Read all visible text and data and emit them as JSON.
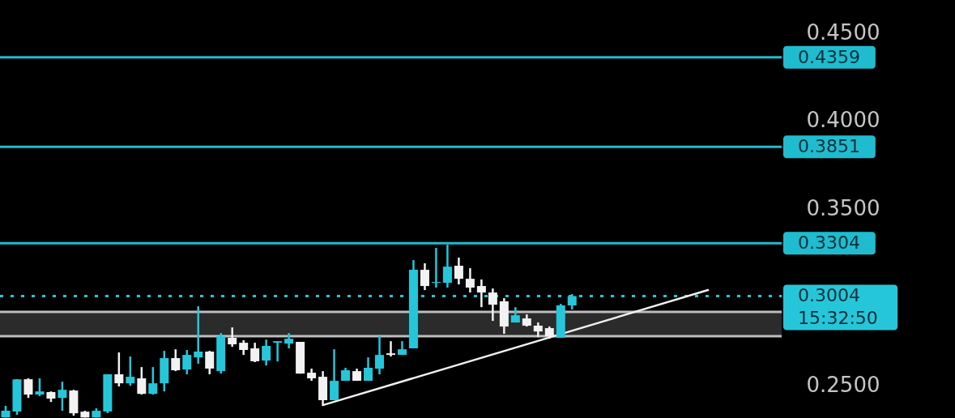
{
  "chart_data": {
    "type": "candlestick",
    "categories": [
      null,
      null,
      null,
      null,
      null,
      null,
      null,
      null,
      null,
      null,
      null,
      null,
      null,
      null,
      null,
      null,
      null,
      null,
      null,
      null,
      null,
      null,
      null,
      null,
      null,
      null,
      null,
      null,
      null,
      null,
      null,
      null,
      null,
      null,
      null,
      null,
      null,
      null,
      null,
      null,
      null,
      null,
      null,
      null,
      null,
      null,
      null,
      null,
      null,
      null,
      null,
      null,
      null,
      null,
      null,
      null,
      null,
      null,
      null,
      null,
      null,
      null,
      null,
      null,
      null,
      null,
      null,
      null,
      null
    ],
    "ohlc": [
      [
        0.2315,
        0.2381,
        0.2315,
        0.2353
      ],
      [
        0.2349,
        0.2532,
        0.233,
        0.2532
      ],
      [
        0.2532,
        0.2537,
        0.2426,
        0.2445
      ],
      [
        0.2445,
        0.2537,
        0.2436,
        0.2463
      ],
      [
        0.2459,
        0.2463,
        0.2403,
        0.2422
      ],
      [
        0.2426,
        0.2518,
        0.2353,
        0.2472
      ],
      [
        0.2468,
        0.2472,
        0.2325,
        0.2339
      ],
      [
        0.2348,
        0.2353,
        0.2315,
        0.2315
      ],
      [
        0.2315,
        0.2367,
        0.2315,
        0.2353
      ],
      [
        0.2349,
        0.256,
        0.234,
        0.256
      ],
      [
        0.256,
        0.2684,
        0.2491,
        0.2509
      ],
      [
        0.2509,
        0.2661,
        0.2495,
        0.2546
      ],
      [
        0.2537,
        0.2601,
        0.2445,
        0.2449
      ],
      [
        0.2449,
        0.2601,
        0.2445,
        0.2509
      ],
      [
        0.2509,
        0.2693,
        0.2463,
        0.2652
      ],
      [
        0.2652,
        0.2702,
        0.2578,
        0.2583
      ],
      [
        0.2587,
        0.2698,
        0.256,
        0.267
      ],
      [
        0.2656,
        0.2946,
        0.262,
        0.2689
      ],
      [
        0.2689,
        0.2693,
        0.256,
        0.2592
      ],
      [
        0.2578,
        0.2794,
        0.2564,
        0.2776
      ],
      [
        0.2767,
        0.2826,
        0.2716,
        0.273
      ],
      [
        0.2739,
        0.2753,
        0.267,
        0.2698
      ],
      [
        0.2707,
        0.2739,
        0.2629,
        0.2634
      ],
      [
        0.2638,
        0.2757,
        0.261,
        0.2721
      ],
      [
        0.2739,
        0.2748,
        0.2633,
        0.2748
      ],
      [
        0.2734,
        0.2794,
        0.2707,
        0.2762
      ],
      [
        0.2744,
        0.2744,
        0.2564,
        0.2564
      ],
      [
        0.2569,
        0.2592,
        0.2523,
        0.2537
      ],
      [
        0.2546,
        0.2578,
        0.2385,
        0.2413
      ],
      [
        0.2413,
        0.2702,
        0.2413,
        0.2523
      ],
      [
        0.2523,
        0.2597,
        0.2523,
        0.2583
      ],
      [
        0.2578,
        0.2592,
        0.2523,
        0.2523
      ],
      [
        0.2523,
        0.2656,
        0.2523,
        0.2597
      ],
      [
        0.2592,
        0.2785,
        0.256,
        0.267
      ],
      [
        0.2679,
        0.2748,
        0.2661,
        0.267
      ],
      [
        0.267,
        0.2748,
        0.267,
        0.2702
      ],
      [
        0.2707,
        0.3208,
        0.2707,
        0.3153
      ],
      [
        0.3153,
        0.319,
        0.3038,
        0.3061
      ],
      [
        0.3079,
        0.3277,
        0.3052,
        0.3084
      ],
      [
        0.3079,
        0.3295,
        0.3052,
        0.3171
      ],
      [
        0.3176,
        0.3222,
        0.307,
        0.3102
      ],
      [
        0.3102,
        0.3162,
        0.3024,
        0.3052
      ],
      [
        0.3061,
        0.3098,
        0.2941,
        0.3024
      ],
      [
        0.3024,
        0.3047,
        0.2863,
        0.2955
      ],
      [
        0.2974,
        0.2992,
        0.279,
        0.2831
      ],
      [
        0.2854,
        0.2941,
        0.2854,
        0.2895
      ],
      [
        0.2877,
        0.29,
        0.2831,
        0.2836
      ],
      [
        0.2836,
        0.2854,
        0.2771,
        0.2803
      ],
      [
        0.2822,
        0.2831,
        0.2762,
        0.2776
      ],
      [
        0.2767,
        0.296,
        0.2767,
        0.2951
      ],
      [
        0.2951,
        0.3015,
        0.2928,
        0.3004
      ],
      null,
      null,
      null,
      null,
      null,
      null,
      null,
      null,
      null,
      null,
      null,
      null,
      null,
      null,
      null,
      null,
      null,
      null
    ],
    "colors": [
      "#26c6da",
      "#26c6da",
      "#f2f2f2",
      "#26c6da",
      "#f2f2f2",
      "#26c6da",
      "#f2f2f2",
      "#f2f2f2",
      "#26c6da",
      "#26c6da",
      "#f2f2f2",
      "#26c6da",
      "#f2f2f2",
      "#26c6da",
      "#26c6da",
      "#f2f2f2",
      "#26c6da",
      "#26c6da",
      "#f2f2f2",
      "#26c6da",
      "#f2f2f2",
      "#f2f2f2",
      "#f2f2f2",
      "#26c6da",
      "#26c6da",
      "#26c6da",
      "#f2f2f2",
      "#f2f2f2",
      "#f2f2f2",
      "#26c6da",
      "#26c6da",
      "#f2f2f2",
      "#26c6da",
      "#26c6da",
      "#f2f2f2",
      "#26c6da",
      "#26c6da",
      "#f2f2f2",
      "#26c6da",
      "#26c6da",
      "#f2f2f2",
      "#f2f2f2",
      "#f2f2f2",
      "#f2f2f2",
      "#f2f2f2",
      "#26c6da",
      "#f2f2f2",
      "#f2f2f2",
      "#f2f2f2",
      "#26c6da",
      "#26c6da",
      null,
      null,
      null,
      null,
      null,
      null,
      null,
      null,
      null,
      null,
      null,
      null,
      null,
      null,
      null,
      null,
      null,
      null
    ],
    "series": [
      {
        "type": "line",
        "color": "#f0f0f0",
        "values": [
          null,
          null,
          null,
          null,
          null,
          null,
          null,
          null,
          null,
          null,
          null,
          null,
          null,
          null,
          null,
          null,
          null,
          null,
          null,
          null,
          null,
          null,
          null,
          null,
          null,
          null,
          null,
          null,
          0.2385,
          null,
          null,
          null,
          null,
          null,
          null,
          null,
          null,
          null,
          null,
          null,
          null,
          null,
          null,
          null,
          null,
          null,
          null,
          null,
          null,
          null,
          null,
          null,
          null,
          null,
          null,
          null,
          null,
          null,
          null,
          null,
          null,
          null,
          0.3038,
          null,
          null,
          null,
          null,
          null,
          null
        ]
      }
    ],
    "ylim": [
      0.2312,
      0.4684
    ],
    "yticks": [
      {
        "value": 0.25,
        "label": "0.2500"
      },
      {
        "value": 0.35,
        "label": "0.3500"
      },
      {
        "value": 0.4,
        "label": "0.4000"
      },
      {
        "value": 0.45,
        "label": "0.4500"
      }
    ],
    "ref_lines": [
      {
        "axis": "y",
        "value": 0.4359,
        "label": "0.4359",
        "color": "#1fbcd0"
      },
      {
        "axis": "y",
        "value": 0.3851,
        "label": "0.3851",
        "color": "#1fbcd0"
      },
      {
        "axis": "y",
        "value": 0.3304,
        "label": "0.3304",
        "color": "#1fbcd0"
      },
      {
        "axis": "y",
        "value": 0.3004,
        "label": "0.3004\n15:32:50",
        "color": "#26c6da",
        "line_style": "dotted"
      },
      {
        "axis": "y",
        "value": 0.2914,
        "color": "#bdbdbd"
      },
      {
        "axis": "y",
        "value": 0.2776,
        "color": "#bdbdbd"
      }
    ],
    "bands": [
      {
        "axis": "y",
        "from": 0.2776,
        "to": 0.2914,
        "color": "#2b2b2b"
      }
    ],
    "tick_labels": "y"
  }
}
